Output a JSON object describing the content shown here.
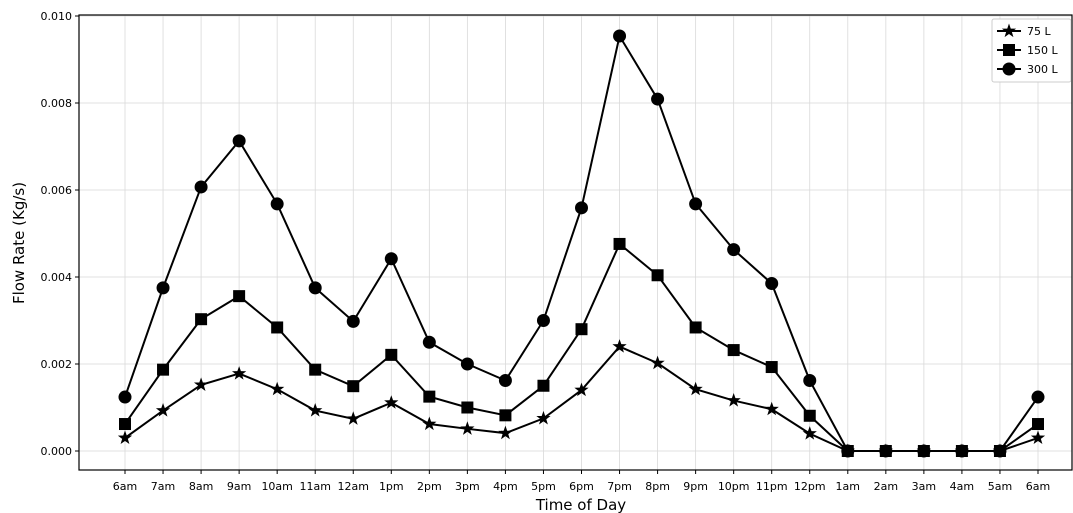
{
  "chart_data": {
    "type": "line",
    "title": "",
    "xlabel": "Time of Day",
    "ylabel": "Flow Rate (Kg/s)",
    "categories": [
      "6am",
      "7am",
      "8am",
      "9am",
      "10am",
      "11am",
      "12am",
      "1pm",
      "2pm",
      "3pm",
      "4pm",
      "5pm",
      "6pm",
      "7pm",
      "8pm",
      "9pm",
      "10pm",
      "11pm",
      "12pm",
      "1am",
      "2am",
      "3am",
      "4am",
      "5am",
      "6am"
    ],
    "ylim": [
      0,
      0.01
    ],
    "yticks": [
      "0.000",
      "0.002",
      "0.004",
      "0.006",
      "0.008",
      "0.010"
    ],
    "ytick_values": [
      0,
      0.002,
      0.004,
      0.006,
      0.008,
      0.01
    ],
    "grid": true,
    "legend_position": "top-right",
    "series": [
      {
        "name": "75 L",
        "marker": "star",
        "values": [
          0.0003,
          0.00093,
          0.00152,
          0.00178,
          0.00142,
          0.00093,
          0.00074,
          0.00111,
          0.00062,
          0.00051,
          0.00041,
          0.00075,
          0.0014,
          0.0024,
          0.00202,
          0.00142,
          0.00116,
          0.00096,
          0.0004,
          0,
          0,
          0,
          0,
          0,
          0.0003
        ]
      },
      {
        "name": "150 L",
        "marker": "square",
        "values": [
          0.00062,
          0.00187,
          0.00303,
          0.00356,
          0.00284,
          0.00187,
          0.00149,
          0.00221,
          0.00125,
          0.001,
          0.00082,
          0.0015,
          0.0028,
          0.00476,
          0.00404,
          0.00284,
          0.00232,
          0.00193,
          0.00081,
          0,
          0,
          0,
          0,
          0,
          0.00062
        ]
      },
      {
        "name": "300 L",
        "marker": "circle",
        "values": [
          0.00124,
          0.00375,
          0.00607,
          0.00713,
          0.00568,
          0.00375,
          0.00298,
          0.00442,
          0.0025,
          0.002,
          0.00162,
          0.003,
          0.00559,
          0.00954,
          0.00809,
          0.00568,
          0.00463,
          0.00385,
          0.00162,
          0,
          0,
          0,
          0,
          0,
          0.00124
        ]
      }
    ]
  }
}
